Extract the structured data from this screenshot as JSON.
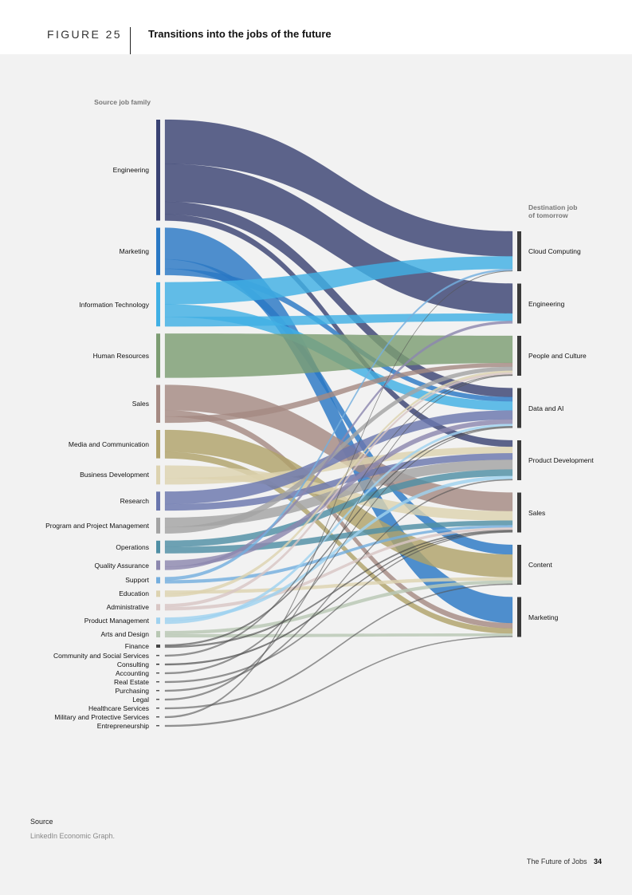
{
  "header": {
    "figure_label": "FIGURE 25",
    "title": "Transitions into the jobs of the future"
  },
  "source_note": {
    "title": "Source",
    "text": "LinkedIn Economic Graph."
  },
  "footer": {
    "report_name": "The Future of Jobs",
    "page_number": "34"
  },
  "chart_data": {
    "type": "sankey",
    "title": "Transitions into the jobs of the future",
    "source_axis_title": "Source job family",
    "destination_axis_title": "Destination job\nof tomorrow",
    "sources": [
      {
        "name": "Engineering",
        "color": "#3a4373",
        "weight": 32
      },
      {
        "name": "Marketing",
        "color": "#2a78c4",
        "weight": 15
      },
      {
        "name": "Information Technology",
        "color": "#41b0e4",
        "weight": 14
      },
      {
        "name": "Human Resources",
        "color": "#7d9d73",
        "weight": 14
      },
      {
        "name": "Sales",
        "color": "#a58a83",
        "weight": 12
      },
      {
        "name": "Media and Communication",
        "color": "#b0a26a",
        "weight": 9
      },
      {
        "name": "Business Development",
        "color": "#ddd3b0",
        "weight": 6
      },
      {
        "name": "Research",
        "color": "#6a76ad",
        "weight": 6
      },
      {
        "name": "Program and Project Management",
        "color": "#a3a3a3",
        "weight": 5
      },
      {
        "name": "Operations",
        "color": "#4f8fa5",
        "weight": 4
      },
      {
        "name": "Quality Assurance",
        "color": "#8c88ae",
        "weight": 3
      },
      {
        "name": "Support",
        "color": "#74aede",
        "weight": 2
      },
      {
        "name": "Education",
        "color": "#ddd3b0",
        "weight": 2
      },
      {
        "name": "Administrative",
        "color": "#d8c6c4",
        "weight": 2
      },
      {
        "name": "Product Management",
        "color": "#9fd2ef",
        "weight": 2
      },
      {
        "name": "Arts and Design",
        "color": "#b8c7b3",
        "weight": 2
      },
      {
        "name": "Finance",
        "color": "#444444",
        "weight": 1
      },
      {
        "name": "Community and Social Services",
        "color": "#555555",
        "weight": 0.5
      },
      {
        "name": "Consulting",
        "color": "#333333",
        "weight": 0.5
      },
      {
        "name": "Accounting",
        "color": "#555555",
        "weight": 0.4
      },
      {
        "name": "Real Estate",
        "color": "#555555",
        "weight": 0.4
      },
      {
        "name": "Purchasing",
        "color": "#555555",
        "weight": 0.4
      },
      {
        "name": "Legal",
        "color": "#555555",
        "weight": 0.4
      },
      {
        "name": "Healthcare Services",
        "color": "#555555",
        "weight": 0.4
      },
      {
        "name": "Military and Protective Services",
        "color": "#555555",
        "weight": 0.4
      },
      {
        "name": "Entrepreneurship",
        "color": "#555555",
        "weight": 0.4
      }
    ],
    "destinations": [
      {
        "name": "Cloud Computing",
        "weight": 1
      },
      {
        "name": "Engineering",
        "weight": 1
      },
      {
        "name": "People and Culture",
        "weight": 1
      },
      {
        "name": "Data and AI",
        "weight": 1
      },
      {
        "name": "Product Development",
        "weight": 1
      },
      {
        "name": "Sales",
        "weight": 1
      },
      {
        "name": "Content",
        "weight": 1
      },
      {
        "name": "Marketing",
        "weight": 1
      }
    ],
    "flows": [
      {
        "source": "Engineering",
        "target": "Cloud Computing",
        "value": 14
      },
      {
        "source": "Engineering",
        "target": "Engineering",
        "value": 12
      },
      {
        "source": "Engineering",
        "target": "Data and AI",
        "value": 4
      },
      {
        "source": "Engineering",
        "target": "Product Development",
        "value": 2
      },
      {
        "source": "Marketing",
        "target": "Marketing",
        "value": 10
      },
      {
        "source": "Marketing",
        "target": "Content",
        "value": 3
      },
      {
        "source": "Marketing",
        "target": "Data and AI",
        "value": 2
      },
      {
        "source": "Information Technology",
        "target": "Cloud Computing",
        "value": 7
      },
      {
        "source": "Information Technology",
        "target": "Data and AI",
        "value": 4
      },
      {
        "source": "Information Technology",
        "target": "Engineering",
        "value": 3
      },
      {
        "source": "Human Resources",
        "target": "People and Culture",
        "value": 14
      },
      {
        "source": "Sales",
        "target": "Sales",
        "value": 8
      },
      {
        "source": "Sales",
        "target": "Marketing",
        "value": 2
      },
      {
        "source": "Sales",
        "target": "People and Culture",
        "value": 2
      },
      {
        "source": "Media and Communication",
        "target": "Content",
        "value": 7
      },
      {
        "source": "Media and Communication",
        "target": "Marketing",
        "value": 2
      },
      {
        "source": "Business Development",
        "target": "Sales",
        "value": 4
      },
      {
        "source": "Business Development",
        "target": "Product Development",
        "value": 2
      },
      {
        "source": "Research",
        "target": "Data and AI",
        "value": 4
      },
      {
        "source": "Research",
        "target": "Product Development",
        "value": 2
      },
      {
        "source": "Program and Project Management",
        "target": "Product Development",
        "value": 3
      },
      {
        "source": "Program and Project Management",
        "target": "People and Culture",
        "value": 2
      },
      {
        "source": "Operations",
        "target": "Product Development",
        "value": 2
      },
      {
        "source": "Operations",
        "target": "Sales",
        "value": 2
      },
      {
        "source": "Quality Assurance",
        "target": "Data and AI",
        "value": 2
      },
      {
        "source": "Quality Assurance",
        "target": "Engineering",
        "value": 1
      },
      {
        "source": "Support",
        "target": "Cloud Computing",
        "value": 1
      },
      {
        "source": "Support",
        "target": "Sales",
        "value": 1
      },
      {
        "source": "Education",
        "target": "Content",
        "value": 1
      },
      {
        "source": "Education",
        "target": "People and Culture",
        "value": 1
      },
      {
        "source": "Administrative",
        "target": "People and Culture",
        "value": 1
      },
      {
        "source": "Administrative",
        "target": "Sales",
        "value": 1
      },
      {
        "source": "Product Management",
        "target": "Product Development",
        "value": 1
      },
      {
        "source": "Product Management",
        "target": "Data and AI",
        "value": 1
      },
      {
        "source": "Arts and Design",
        "target": "Content",
        "value": 1
      },
      {
        "source": "Arts and Design",
        "target": "Marketing",
        "value": 1
      },
      {
        "source": "Finance",
        "target": "Data and AI",
        "value": 0.5
      },
      {
        "source": "Finance",
        "target": "Sales",
        "value": 0.5
      },
      {
        "source": "Community and Social Services",
        "target": "People and Culture",
        "value": 0.3
      },
      {
        "source": "Consulting",
        "target": "Sales",
        "value": 0.3
      },
      {
        "source": "Accounting",
        "target": "Data and AI",
        "value": 0.3
      },
      {
        "source": "Real Estate",
        "target": "Sales",
        "value": 0.3
      },
      {
        "source": "Purchasing",
        "target": "Product Development",
        "value": 0.3
      },
      {
        "source": "Legal",
        "target": "People and Culture",
        "value": 0.3
      },
      {
        "source": "Healthcare Services",
        "target": "Content",
        "value": 0.3
      },
      {
        "source": "Military and Protective Services",
        "target": "Cloud Computing",
        "value": 0.3
      },
      {
        "source": "Entrepreneurship",
        "target": "Marketing",
        "value": 0.3
      }
    ]
  }
}
